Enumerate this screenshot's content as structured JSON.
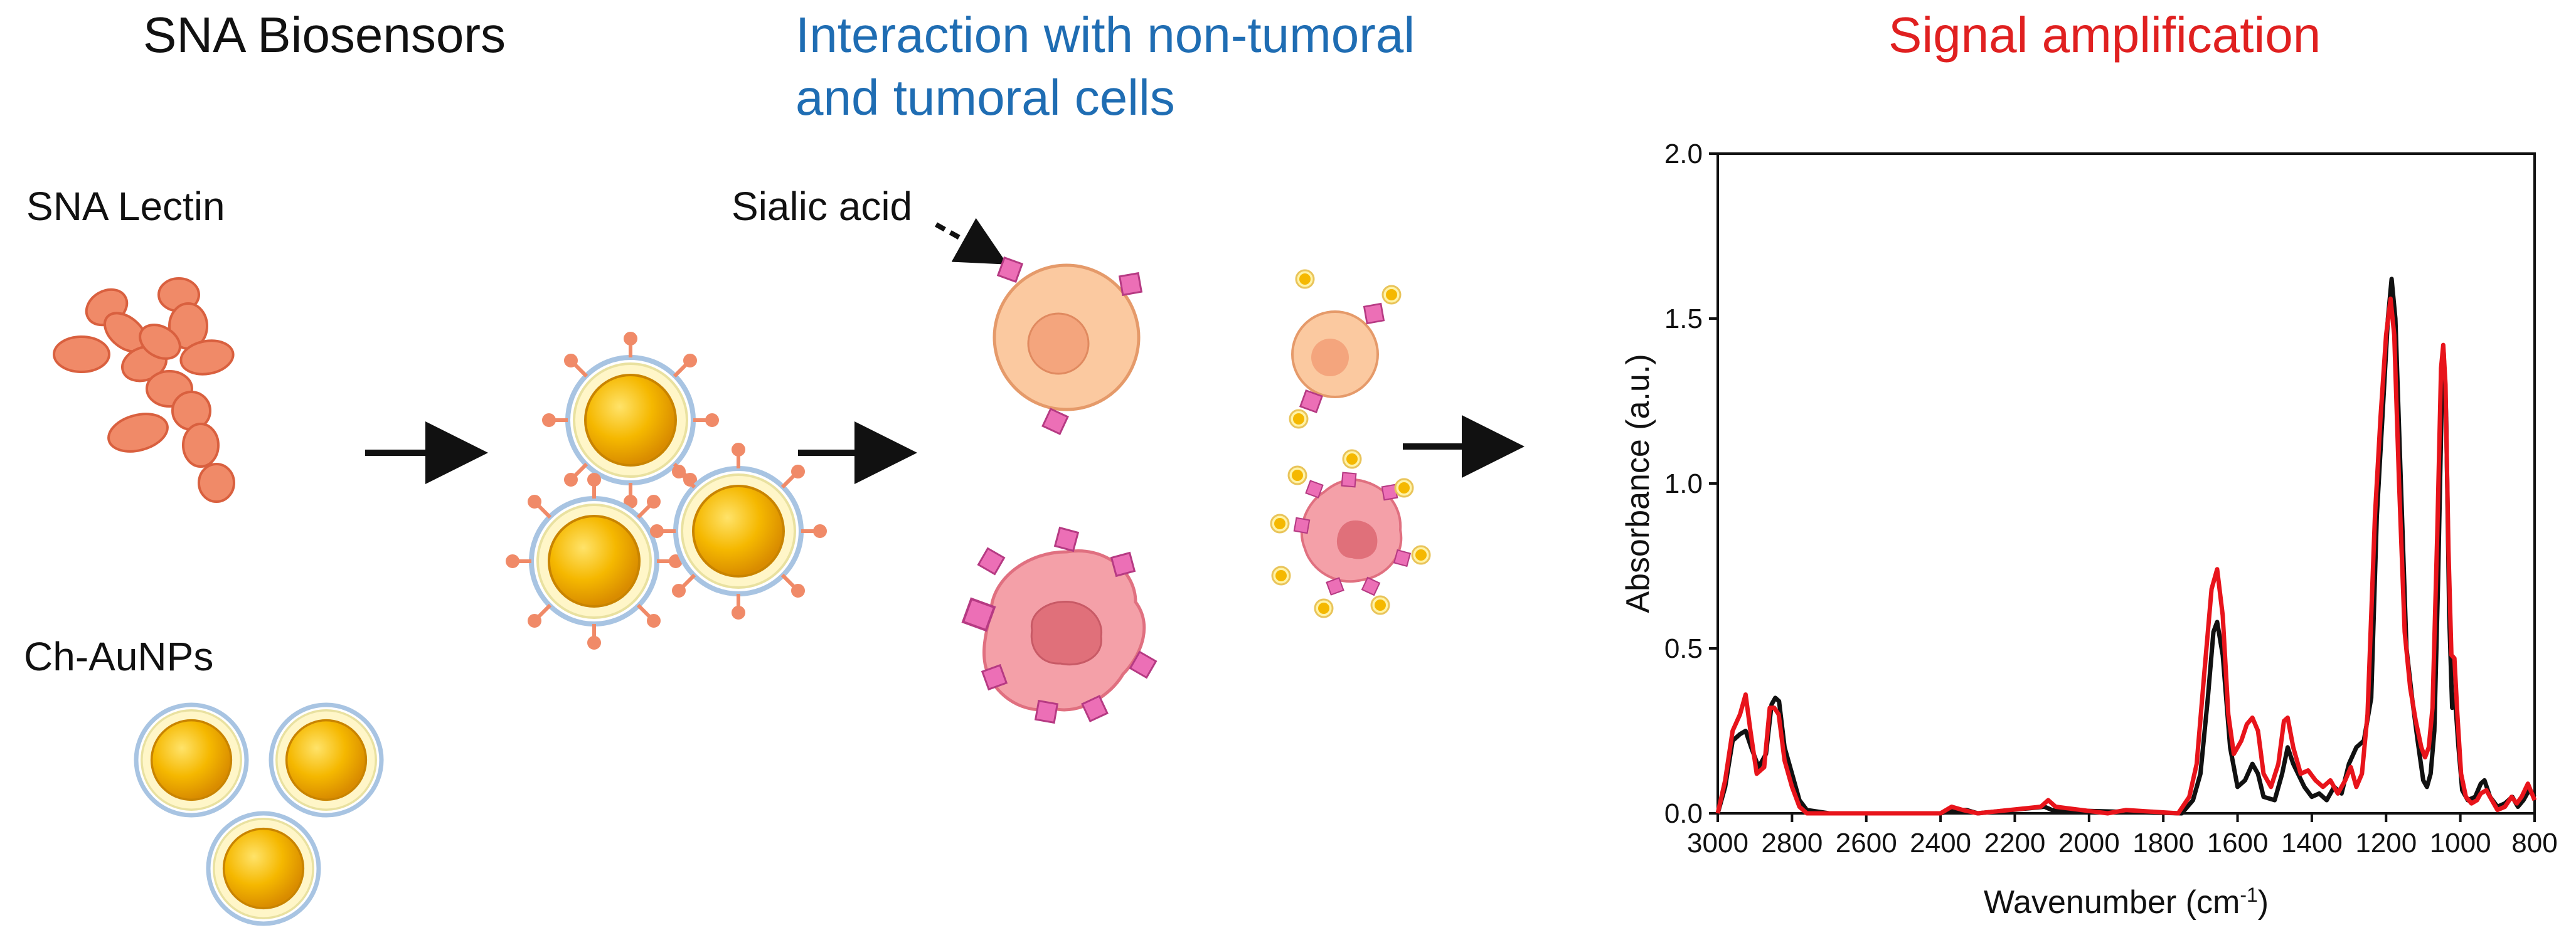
{
  "headings": {
    "biosensors": "SNA Biosensors",
    "interaction_line1": "Interaction with non-tumoral",
    "interaction_line2": "and tumoral cells",
    "amplification": "Signal amplification"
  },
  "labels": {
    "lectin": "SNA Lectin",
    "nanoparticles": "Ch-AuNPs",
    "sialic_acid": "Sialic acid"
  },
  "colors": {
    "heading_black": "#111111",
    "heading_blue": "#1f6db3",
    "heading_red": "#e02020",
    "lectin": "#f08a68",
    "gold": "#f5b800",
    "sialic": "#ec6fb6",
    "healthy_cell": "#fbc9a0",
    "tumor_cell": "#f4a0a8",
    "series_black": "#111111",
    "series_red": "#e8141b"
  },
  "chart_data": {
    "type": "line",
    "xlabel": "Wavenumber (cm⁻¹)",
    "xlabel_main": "Wavenumber ",
    "xlabel_unit": "cm",
    "xlabel_exp": "-1",
    "ylabel": "Absorbance (a.u.)",
    "xlim": [
      3000,
      800
    ],
    "ylim": [
      0,
      2.0
    ],
    "x_reversed": true,
    "xticks": [
      3000,
      2800,
      2600,
      2400,
      2200,
      2000,
      1800,
      1600,
      1400,
      1200,
      1000,
      800
    ],
    "yticks": [
      "0.0",
      "0.5",
      "1.0",
      "1.5",
      "2.0"
    ],
    "grid": false,
    "series": [
      {
        "color": "#111111",
        "points": [
          [
            3000,
            0.0
          ],
          [
            2980,
            0.08
          ],
          [
            2960,
            0.22
          ],
          [
            2940,
            0.24
          ],
          [
            2925,
            0.25
          ],
          [
            2910,
            0.2
          ],
          [
            2890,
            0.14
          ],
          [
            2870,
            0.18
          ],
          [
            2855,
            0.33
          ],
          [
            2845,
            0.35
          ],
          [
            2835,
            0.34
          ],
          [
            2820,
            0.2
          ],
          [
            2800,
            0.12
          ],
          [
            2780,
            0.04
          ],
          [
            2760,
            0.01
          ],
          [
            2700,
            0.0
          ],
          [
            2400,
            0.0
          ],
          [
            2360,
            0.01
          ],
          [
            2330,
            0.01
          ],
          [
            2300,
            0.0
          ],
          [
            2120,
            0.02
          ],
          [
            2100,
            0.01
          ],
          [
            1750,
            0.0
          ],
          [
            1720,
            0.04
          ],
          [
            1700,
            0.12
          ],
          [
            1680,
            0.35
          ],
          [
            1665,
            0.55
          ],
          [
            1655,
            0.58
          ],
          [
            1640,
            0.48
          ],
          [
            1620,
            0.2
          ],
          [
            1600,
            0.08
          ],
          [
            1580,
            0.1
          ],
          [
            1560,
            0.15
          ],
          [
            1545,
            0.12
          ],
          [
            1530,
            0.05
          ],
          [
            1500,
            0.04
          ],
          [
            1480,
            0.12
          ],
          [
            1465,
            0.2
          ],
          [
            1450,
            0.15
          ],
          [
            1420,
            0.08
          ],
          [
            1400,
            0.05
          ],
          [
            1380,
            0.06
          ],
          [
            1360,
            0.04
          ],
          [
            1340,
            0.08
          ],
          [
            1320,
            0.06
          ],
          [
            1300,
            0.15
          ],
          [
            1280,
            0.2
          ],
          [
            1260,
            0.22
          ],
          [
            1240,
            0.35
          ],
          [
            1225,
            0.9
          ],
          [
            1210,
            1.2
          ],
          [
            1195,
            1.5
          ],
          [
            1185,
            1.62
          ],
          [
            1175,
            1.5
          ],
          [
            1160,
            1.0
          ],
          [
            1145,
            0.5
          ],
          [
            1130,
            0.35
          ],
          [
            1115,
            0.22
          ],
          [
            1100,
            0.1
          ],
          [
            1090,
            0.08
          ],
          [
            1080,
            0.12
          ],
          [
            1070,
            0.25
          ],
          [
            1060,
            0.7
          ],
          [
            1050,
            1.25
          ],
          [
            1045,
            1.4
          ],
          [
            1038,
            1.2
          ],
          [
            1030,
            0.6
          ],
          [
            1022,
            0.32
          ],
          [
            1015,
            0.36
          ],
          [
            1005,
            0.2
          ],
          [
            995,
            0.07
          ],
          [
            980,
            0.04
          ],
          [
            960,
            0.05
          ],
          [
            945,
            0.09
          ],
          [
            935,
            0.1
          ],
          [
            920,
            0.05
          ],
          [
            900,
            0.02
          ],
          [
            880,
            0.03
          ],
          [
            860,
            0.05
          ],
          [
            845,
            0.02
          ],
          [
            830,
            0.04
          ],
          [
            815,
            0.07
          ],
          [
            800,
            0.05
          ]
        ]
      },
      {
        "color": "#e8141b",
        "points": [
          [
            3000,
            0.0
          ],
          [
            2980,
            0.1
          ],
          [
            2960,
            0.25
          ],
          [
            2940,
            0.3
          ],
          [
            2925,
            0.36
          ],
          [
            2912,
            0.25
          ],
          [
            2895,
            0.12
          ],
          [
            2875,
            0.14
          ],
          [
            2860,
            0.32
          ],
          [
            2848,
            0.32
          ],
          [
            2836,
            0.3
          ],
          [
            2820,
            0.16
          ],
          [
            2800,
            0.08
          ],
          [
            2780,
            0.02
          ],
          [
            2760,
            0.0
          ],
          [
            2400,
            0.0
          ],
          [
            2370,
            0.02
          ],
          [
            2340,
            0.01
          ],
          [
            2300,
            0.0
          ],
          [
            2130,
            0.02
          ],
          [
            2110,
            0.04
          ],
          [
            2090,
            0.02
          ],
          [
            1950,
            0.0
          ],
          [
            1900,
            0.01
          ],
          [
            1760,
            0.0
          ],
          [
            1730,
            0.05
          ],
          [
            1710,
            0.15
          ],
          [
            1690,
            0.42
          ],
          [
            1670,
            0.68
          ],
          [
            1655,
            0.74
          ],
          [
            1640,
            0.6
          ],
          [
            1625,
            0.3
          ],
          [
            1610,
            0.18
          ],
          [
            1590,
            0.22
          ],
          [
            1575,
            0.27
          ],
          [
            1560,
            0.29
          ],
          [
            1545,
            0.25
          ],
          [
            1530,
            0.12
          ],
          [
            1510,
            0.08
          ],
          [
            1490,
            0.15
          ],
          [
            1475,
            0.28
          ],
          [
            1465,
            0.29
          ],
          [
            1450,
            0.2
          ],
          [
            1430,
            0.12
          ],
          [
            1410,
            0.13
          ],
          [
            1390,
            0.1
          ],
          [
            1370,
            0.08
          ],
          [
            1350,
            0.1
          ],
          [
            1330,
            0.06
          ],
          [
            1310,
            0.1
          ],
          [
            1295,
            0.14
          ],
          [
            1280,
            0.08
          ],
          [
            1265,
            0.12
          ],
          [
            1250,
            0.3
          ],
          [
            1230,
            0.9
          ],
          [
            1215,
            1.2
          ],
          [
            1200,
            1.45
          ],
          [
            1188,
            1.56
          ],
          [
            1178,
            1.45
          ],
          [
            1165,
            1.0
          ],
          [
            1150,
            0.55
          ],
          [
            1135,
            0.38
          ],
          [
            1120,
            0.28
          ],
          [
            1105,
            0.2
          ],
          [
            1095,
            0.17
          ],
          [
            1085,
            0.2
          ],
          [
            1075,
            0.32
          ],
          [
            1062,
            0.85
          ],
          [
            1052,
            1.35
          ],
          [
            1046,
            1.42
          ],
          [
            1040,
            1.3
          ],
          [
            1032,
            0.8
          ],
          [
            1024,
            0.48
          ],
          [
            1016,
            0.47
          ],
          [
            1008,
            0.3
          ],
          [
            998,
            0.12
          ],
          [
            985,
            0.05
          ],
          [
            970,
            0.03
          ],
          [
            955,
            0.04
          ],
          [
            945,
            0.06
          ],
          [
            930,
            0.07
          ],
          [
            915,
            0.04
          ],
          [
            900,
            0.01
          ],
          [
            880,
            0.02
          ],
          [
            862,
            0.05
          ],
          [
            848,
            0.03
          ],
          [
            835,
            0.05
          ],
          [
            818,
            0.09
          ],
          [
            800,
            0.04
          ]
        ]
      }
    ]
  }
}
